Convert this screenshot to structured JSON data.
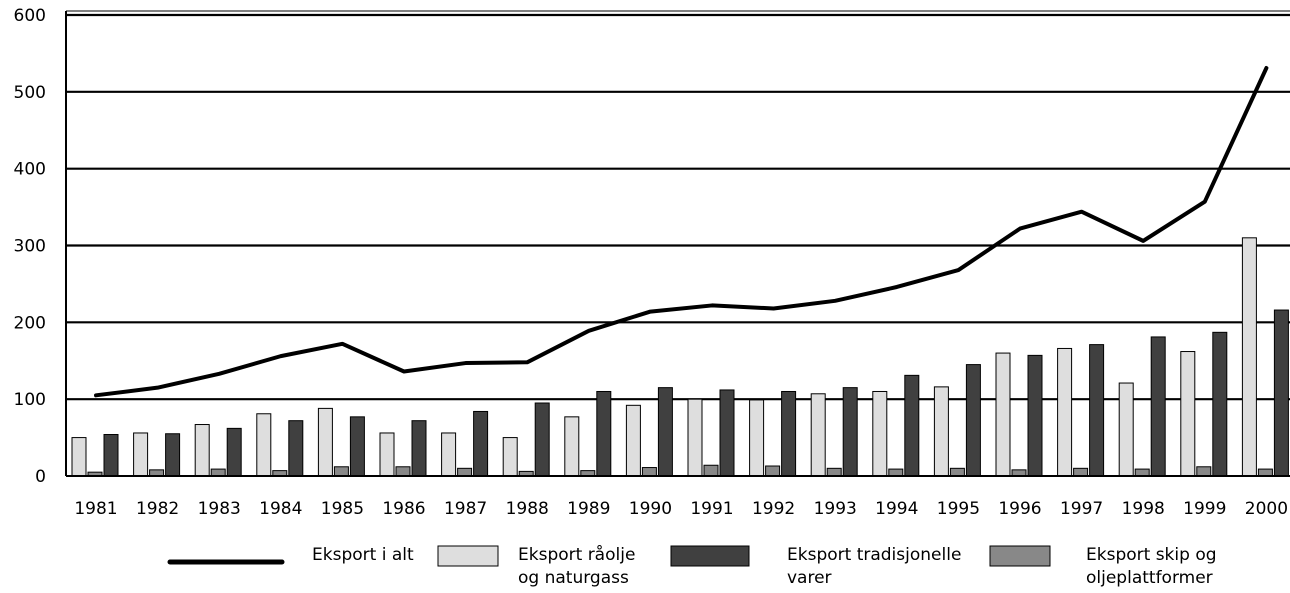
{
  "chart_data": {
    "type": "bar",
    "categories": [
      "1981",
      "1982",
      "1983",
      "1984",
      "1985",
      "1986",
      "1987",
      "1988",
      "1989",
      "1990",
      "1991",
      "1992",
      "1993",
      "1994",
      "1995",
      "1996",
      "1997",
      "1998",
      "1999",
      "2000"
    ],
    "ylim": [
      0,
      600
    ],
    "yticks": [
      0,
      100,
      200,
      300,
      400,
      500,
      600
    ],
    "grid": true,
    "legend_position": "bottom",
    "series": [
      {
        "name": "Eksport råolje og naturgass",
        "legend_lines": [
          "Eksport råolje",
          "og naturgass"
        ],
        "mark": "bar",
        "color": "#dedede",
        "values": [
          50,
          56,
          67,
          81,
          88,
          56,
          56,
          50,
          77,
          92,
          100,
          99,
          107,
          110,
          116,
          160,
          166,
          121,
          162,
          310
        ]
      },
      {
        "name": "Eksport skip og oljeplattformer",
        "legend_lines": [
          "Eksport skip og",
          "oljeplattformer"
        ],
        "mark": "bar",
        "color": "#888888",
        "values": [
          5,
          8,
          9,
          7,
          12,
          12,
          10,
          6,
          7,
          11,
          14,
          13,
          10,
          9,
          10,
          8,
          10,
          9,
          12,
          9
        ]
      },
      {
        "name": "Eksport tradisjonelle varer",
        "legend_lines": [
          "Eksport tradisjonelle",
          "varer"
        ],
        "mark": "bar",
        "color": "#404040",
        "values": [
          54,
          55,
          62,
          72,
          77,
          72,
          84,
          95,
          110,
          115,
          112,
          110,
          115,
          131,
          145,
          157,
          171,
          181,
          187,
          216
        ]
      },
      {
        "name": "Eksport i alt",
        "legend_lines": [
          "Eksport i alt"
        ],
        "mark": "line",
        "color": "#000000",
        "values": [
          105,
          115,
          133,
          156,
          172,
          136,
          147,
          148,
          189,
          214,
          222,
          218,
          228,
          246,
          268,
          322,
          344,
          306,
          357,
          531
        ]
      }
    ]
  }
}
